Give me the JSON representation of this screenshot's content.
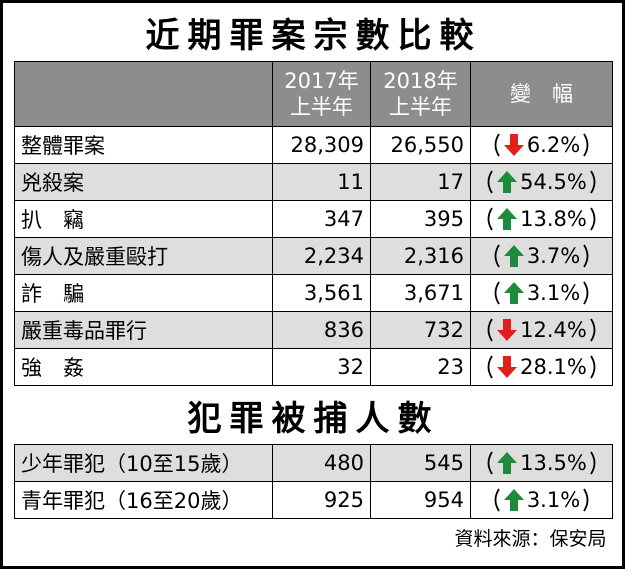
{
  "title": "近期罪案宗數比較",
  "columns": [
    [
      "2017年",
      "上半年"
    ],
    [
      "2018年",
      "上半年"
    ],
    "變　幅"
  ],
  "crime_rows": [
    {
      "name": "整體罪案",
      "y2017": "28,309",
      "y2018": "26,550",
      "change": "6.2%"
    },
    {
      "name": "兇殺案",
      "y2017": "11",
      "y2018": "17",
      "change": "54.5%"
    },
    {
      "name": "扒　竊",
      "y2017": "347",
      "y2018": "395",
      "change": "13.8%"
    },
    {
      "name": "傷人及嚴重毆打",
      "y2017": "2,234",
      "y2018": "2,316",
      "change": "3.7%"
    },
    {
      "name": "詐　騙",
      "y2017": "3,561",
      "y2018": "3,671",
      "change": "3.1%"
    },
    {
      "name": "嚴重毒品罪行",
      "y2017": "836",
      "y2018": "732",
      "change": "12.4%"
    },
    {
      "name": "強　姦",
      "y2017": "32",
      "y2018": "23",
      "change": "28.1%"
    }
  ],
  "arrest_title": "犯罪被捕人數",
  "arrest_rows": [
    {
      "name": "少年罪犯（10至15歲）",
      "y2017": "480",
      "y2018": "545",
      "change": "13.5%"
    },
    {
      "name": "青年罪犯（16至20歲）",
      "y2017": "925",
      "y2018": "954",
      "change": "3.1%"
    }
  ],
  "source": "資料來源：保安局"
}
